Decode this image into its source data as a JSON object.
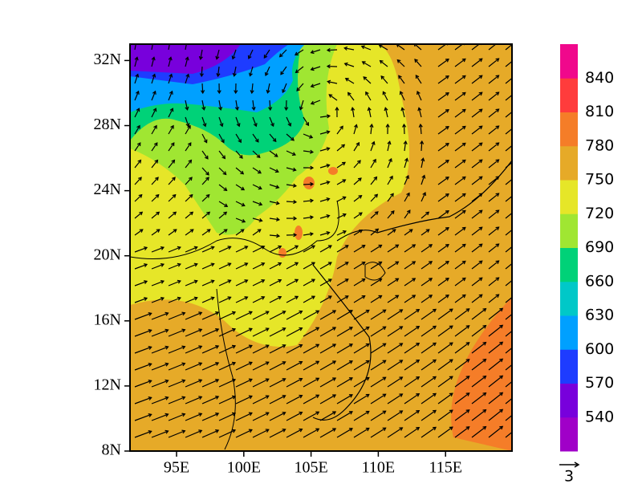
{
  "map": {
    "x_ticks": [
      "95E",
      "100E",
      "105E",
      "110E",
      "115E"
    ],
    "y_ticks": [
      "8N",
      "12N",
      "16N",
      "20N",
      "24N",
      "28N",
      "32N"
    ],
    "colorbar": {
      "labels": [
        "540",
        "570",
        "600",
        "630",
        "660",
        "690",
        "720",
        "750",
        "780",
        "810",
        "840"
      ],
      "colors": [
        "#a000c8",
        "#7800dc",
        "#1e3cff",
        "#00a0ff",
        "#00c8c8",
        "#00d278",
        "#a0e632",
        "#e6e628",
        "#e6aa28",
        "#f57d28",
        "#ff3c3c",
        "#f0088c"
      ]
    },
    "vector_reference": "3"
  }
}
